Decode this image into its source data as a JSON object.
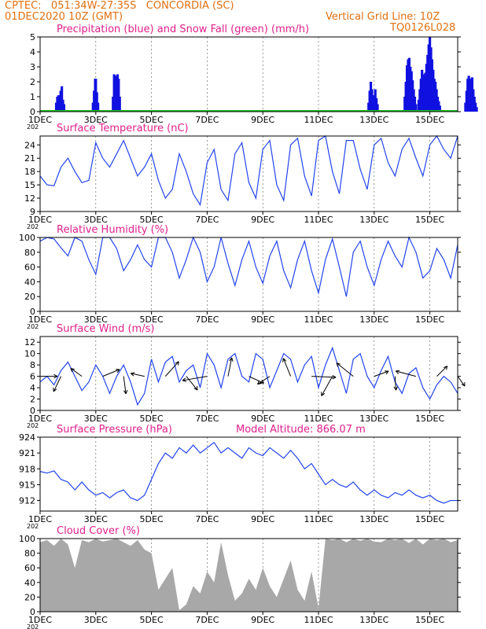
{
  "header": {
    "line1": "CPTEC:   051:34W-27:35S   CONCORDIA (SC)",
    "line2": "01DEC2020 10Z (GMT)",
    "grid_note": "Vertical Grid Line: 10Z",
    "code": "TQ0126L028",
    "model_altitude": "Model Altitude: 866.07 m"
  },
  "colors": {
    "header": "#e07010",
    "title": "#e0208c",
    "line": "#2244ee",
    "bar": "#1010e0",
    "snow": "#20c020",
    "cloud": "#a8a8a8",
    "arrow": "#000000"
  },
  "x_axis": {
    "ticks": [
      "1DEC",
      "3DEC",
      "5DEC",
      "7DEC",
      "9DEC",
      "11DEC",
      "13DEC",
      "15DEC"
    ],
    "tick_days": [
      0,
      2,
      4,
      6,
      8,
      10,
      12,
      14
    ],
    "range": [
      0,
      15
    ],
    "year_stub": "202"
  },
  "chart_data": [
    {
      "type": "bar",
      "title": "Precipitation (blue) and Snow Fall (green) (mm/h)",
      "ylim": [
        0,
        5
      ],
      "yticks": [
        0,
        1,
        2,
        3,
        4,
        5
      ],
      "series": [
        {
          "name": "Precipitation",
          "x": [
            0.58,
            0.62,
            0.66,
            0.7,
            0.74,
            0.78,
            0.82,
            0.86,
            1.9,
            1.94,
            1.98,
            2.0,
            2.04,
            2.08,
            2.62,
            2.66,
            2.7,
            2.74,
            2.78,
            2.82,
            2.86,
            11.8,
            11.84,
            11.88,
            11.92,
            11.96,
            12.0,
            12.04,
            12.08,
            12.12,
            13.1,
            13.14,
            13.18,
            13.22,
            13.26,
            13.3,
            13.34,
            13.38,
            13.42,
            13.46,
            13.5,
            13.6,
            13.64,
            13.68,
            13.72,
            13.76,
            13.8,
            13.84,
            13.88,
            13.92,
            13.96,
            14.0,
            14.04,
            14.08,
            14.12,
            14.16,
            14.2,
            14.24,
            14.28,
            14.32,
            14.36,
            15.28,
            15.32,
            15.36,
            15.4,
            15.44,
            15.48,
            15.52,
            15.56,
            15.6,
            15.64,
            15.68
          ],
          "values": [
            0.6,
            1.0,
            1.1,
            0.9,
            1.4,
            1.7,
            0.8,
            0.5,
            0.6,
            1.4,
            2.2,
            2.2,
            1.3,
            0.6,
            1.0,
            2.5,
            2.4,
            2.2,
            2.5,
            2.2,
            1.0,
            0.6,
            1.4,
            2.0,
            1.5,
            1.1,
            0.8,
            1.5,
            0.9,
            0.5,
            1.0,
            2.0,
            3.1,
            3.5,
            3.6,
            3.0,
            2.7,
            2.1,
            1.5,
            1.0,
            0.5,
            0.8,
            1.5,
            2.2,
            2.8,
            2.5,
            2.0,
            2.6,
            3.2,
            3.8,
            4.5,
            5.0,
            4.3,
            3.5,
            2.8,
            2.2,
            2.0,
            1.5,
            1.0,
            0.7,
            0.4,
            0.6,
            1.4,
            2.2,
            2.4,
            1.9,
            2.2,
            2.3,
            1.5,
            1.0,
            0.6,
            0.3
          ]
        },
        {
          "name": "Snow Fall",
          "x": [],
          "values": []
        }
      ]
    },
    {
      "type": "line",
      "title": "Surface Temperature (nC)",
      "ylim": [
        9,
        26
      ],
      "yticks": [
        9,
        12,
        15,
        18,
        21,
        24
      ],
      "x": [
        0,
        0.25,
        0.5,
        0.75,
        1,
        1.25,
        1.5,
        1.75,
        2,
        2.25,
        2.5,
        2.75,
        3,
        3.25,
        3.5,
        3.75,
        4,
        4.25,
        4.5,
        4.75,
        5,
        5.25,
        5.5,
        5.75,
        6,
        6.25,
        6.5,
        6.75,
        7,
        7.25,
        7.5,
        7.75,
        8,
        8.25,
        8.5,
        8.75,
        9,
        9.25,
        9.5,
        9.75,
        10,
        10.25,
        10.5,
        10.75,
        11,
        11.25,
        11.5,
        11.75,
        12,
        12.25,
        12.5,
        12.75,
        13,
        13.25,
        13.5,
        13.75,
        14,
        14.25,
        14.5,
        14.75,
        15
      ],
      "values": [
        17,
        15,
        14.8,
        19,
        21,
        18,
        15.5,
        16,
        24.5,
        21,
        19,
        22,
        25,
        21,
        17,
        19,
        22,
        16,
        12,
        14,
        22,
        18,
        13,
        10.5,
        20,
        23,
        14,
        11.5,
        22,
        24.5,
        15.5,
        12,
        23,
        25,
        15,
        11.5,
        24,
        25.5,
        17,
        12.5,
        25,
        26,
        18,
        13,
        25,
        25,
        18.5,
        14,
        24,
        25.5,
        20,
        17,
        23,
        25.5,
        21,
        17,
        24,
        26,
        23,
        21,
        26
      ]
    },
    {
      "type": "line",
      "title": "Relative Humidity (%)",
      "ylim": [
        0,
        100
      ],
      "yticks": [
        0,
        20,
        40,
        60,
        80,
        100
      ],
      "x": [
        0,
        0.25,
        0.5,
        0.75,
        1,
        1.25,
        1.5,
        1.75,
        2,
        2.25,
        2.5,
        2.75,
        3,
        3.25,
        3.5,
        3.75,
        4,
        4.25,
        4.5,
        4.75,
        5,
        5.25,
        5.5,
        5.75,
        6,
        6.25,
        6.5,
        6.75,
        7,
        7.25,
        7.5,
        7.75,
        8,
        8.25,
        8.5,
        8.75,
        9,
        9.25,
        9.5,
        9.75,
        10,
        10.25,
        10.5,
        10.75,
        11,
        11.25,
        11.5,
        11.75,
        12,
        12.25,
        12.5,
        12.75,
        13,
        13.25,
        13.5,
        13.75,
        14,
        14.25,
        14.5,
        14.75,
        15
      ],
      "values": [
        95,
        100,
        98,
        86,
        75,
        100,
        95,
        70,
        50,
        100,
        100,
        85,
        55,
        70,
        90,
        70,
        60,
        100,
        100,
        80,
        45,
        70,
        100,
        80,
        40,
        60,
        100,
        65,
        35,
        70,
        95,
        60,
        38,
        75,
        95,
        55,
        32,
        70,
        95,
        55,
        25,
        70,
        98,
        60,
        20,
        80,
        95,
        60,
        35,
        70,
        95,
        75,
        60,
        100,
        80,
        45,
        55,
        85,
        70,
        45,
        90
      ]
    },
    {
      "type": "line",
      "title": "Surface Wind (m/s)",
      "ylim": [
        0,
        13
      ],
      "yticks": [
        0,
        2,
        4,
        6,
        8,
        10,
        12
      ],
      "x": [
        0,
        0.25,
        0.5,
        0.75,
        1,
        1.25,
        1.5,
        1.75,
        2,
        2.25,
        2.5,
        2.75,
        3,
        3.25,
        3.5,
        3.75,
        4,
        4.25,
        4.5,
        4.75,
        5,
        5.25,
        5.5,
        5.75,
        6,
        6.25,
        6.5,
        6.75,
        7,
        7.25,
        7.5,
        7.75,
        8,
        8.25,
        8.5,
        8.75,
        9,
        9.25,
        9.5,
        9.75,
        10,
        10.25,
        10.5,
        10.75,
        11,
        11.25,
        11.5,
        11.75,
        12,
        12.25,
        12.5,
        12.75,
        13,
        13.25,
        13.5,
        13.75,
        14,
        14.25,
        14.5,
        14.75,
        15
      ],
      "values": [
        5,
        6,
        4.5,
        7,
        8.5,
        6,
        3.5,
        5,
        8,
        6,
        3,
        6,
        8,
        5,
        1,
        3,
        9,
        5,
        8.5,
        9.5,
        5,
        7,
        8,
        4,
        10,
        8,
        4,
        9,
        10,
        6,
        5,
        10,
        9,
        4,
        7,
        10,
        9,
        5,
        8,
        9.5,
        4,
        8,
        11,
        7,
        3,
        9,
        10,
        6,
        4,
        7,
        9.5,
        5,
        3,
        6.5,
        7.5,
        4,
        2,
        4.5,
        6,
        5,
        3
      ]
    },
    {
      "type": "line",
      "title": "Surface Pressure (hPa)",
      "ylim": [
        910,
        924
      ],
      "yticks": [
        912,
        915,
        918,
        921,
        924
      ],
      "x": [
        0,
        0.25,
        0.5,
        0.75,
        1,
        1.25,
        1.5,
        1.75,
        2,
        2.25,
        2.5,
        2.75,
        3,
        3.25,
        3.5,
        3.75,
        4,
        4.25,
        4.5,
        4.75,
        5,
        5.25,
        5.5,
        5.75,
        6,
        6.25,
        6.5,
        6.75,
        7,
        7.25,
        7.5,
        7.75,
        8,
        8.25,
        8.5,
        8.75,
        9,
        9.25,
        9.5,
        9.75,
        10,
        10.25,
        10.5,
        10.75,
        11,
        11.25,
        11.5,
        11.75,
        12,
        12.25,
        12.5,
        12.75,
        13,
        13.25,
        13.5,
        13.75,
        14,
        14.25,
        14.5,
        14.75,
        15
      ],
      "values": [
        917.5,
        917.2,
        917.6,
        916,
        915.5,
        914,
        915.5,
        914,
        913,
        913.5,
        912.5,
        913.5,
        914,
        912.5,
        912,
        913,
        916,
        919,
        921,
        920,
        922,
        921,
        922.5,
        921,
        922,
        923,
        921,
        922,
        921,
        920,
        922,
        921,
        920.5,
        922,
        921,
        920,
        921.5,
        920,
        918,
        919,
        917,
        915,
        916,
        915,
        914.5,
        915.5,
        914,
        913,
        914,
        913,
        912.5,
        913.5,
        913,
        914,
        913,
        912.5,
        913,
        912,
        911.5,
        912,
        912
      ]
    },
    {
      "type": "area",
      "title": "Cloud Cover (%)",
      "ylim": [
        0,
        100
      ],
      "yticks": [
        0,
        20,
        40,
        60,
        80,
        100
      ],
      "x": [
        0,
        0.25,
        0.5,
        0.75,
        1,
        1.25,
        1.5,
        1.75,
        2,
        2.25,
        2.5,
        2.75,
        3,
        3.25,
        3.5,
        3.75,
        4,
        4.25,
        4.5,
        4.75,
        5,
        5.25,
        5.5,
        5.75,
        6,
        6.25,
        6.5,
        6.75,
        7,
        7.25,
        7.5,
        7.75,
        8,
        8.25,
        8.5,
        8.75,
        9,
        9.25,
        9.5,
        9.75,
        10,
        10.25,
        10.5,
        10.75,
        11,
        11.25,
        11.5,
        11.75,
        12,
        12.25,
        12.5,
        12.75,
        13,
        13.25,
        13.5,
        13.75,
        14,
        14.25,
        14.5,
        14.75,
        15
      ],
      "values": [
        95,
        98,
        90,
        100,
        92,
        60,
        98,
        95,
        100,
        96,
        98,
        100,
        95,
        90,
        98,
        85,
        80,
        30,
        45,
        60,
        2,
        10,
        35,
        25,
        55,
        40,
        95,
        50,
        15,
        25,
        45,
        30,
        60,
        35,
        20,
        45,
        70,
        30,
        15,
        55,
        5,
        100,
        98,
        100,
        95,
        100,
        97,
        100,
        96,
        95,
        100,
        98,
        100,
        94,
        100,
        92,
        100,
        98,
        100,
        95,
        98
      ]
    }
  ]
}
